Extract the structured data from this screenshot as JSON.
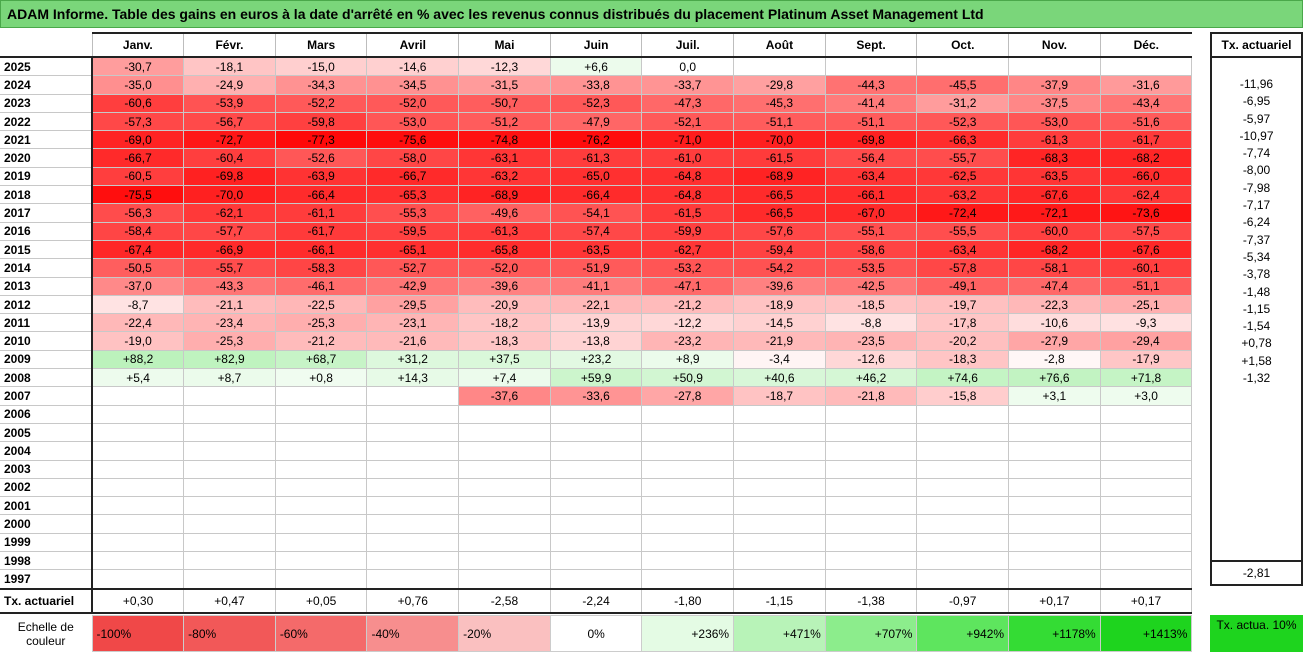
{
  "title": "ADAM Informe. Table des gains en euros à la date d'arrêté en % avec les revenus connus distribués du placement Platinum Asset Management Ltd",
  "chart_data": {
    "type": "heatmap",
    "columns": [
      "Janv.",
      "Févr.",
      "Mars",
      "Avril",
      "Mai",
      "Juin",
      "Juil.",
      "Août",
      "Sept.",
      "Oct.",
      "Nov.",
      "Déc."
    ],
    "side_header": "Tx. actuariel",
    "rows": [
      {
        "year": "2025",
        "values": [
          "-30,7",
          "-18,1",
          "-15,0",
          "-14,6",
          "-12,3",
          "+6,6",
          "0,0",
          "",
          "",
          "",
          "",
          ""
        ],
        "tx": ""
      },
      {
        "year": "2024",
        "values": [
          "-35,0",
          "-24,9",
          "-34,3",
          "-34,5",
          "-31,5",
          "-33,8",
          "-33,7",
          "-29,8",
          "-44,3",
          "-45,5",
          "-37,9",
          "-31,6"
        ],
        "tx": "-11,96"
      },
      {
        "year": "2023",
        "values": [
          "-60,6",
          "-53,9",
          "-52,2",
          "-52,0",
          "-50,7",
          "-52,3",
          "-47,3",
          "-45,3",
          "-41,4",
          "-31,2",
          "-37,5",
          "-43,4"
        ],
        "tx": "-6,95"
      },
      {
        "year": "2022",
        "values": [
          "-57,3",
          "-56,7",
          "-59,8",
          "-53,0",
          "-51,2",
          "-47,9",
          "-52,1",
          "-51,1",
          "-51,1",
          "-52,3",
          "-53,0",
          "-51,6"
        ],
        "tx": "-5,97"
      },
      {
        "year": "2021",
        "values": [
          "-69,0",
          "-72,7",
          "-77,3",
          "-75,6",
          "-74,8",
          "-76,2",
          "-71,0",
          "-70,0",
          "-69,8",
          "-66,3",
          "-61,3",
          "-61,7"
        ],
        "tx": "-10,97"
      },
      {
        "year": "2020",
        "values": [
          "-66,7",
          "-60,4",
          "-52,6",
          "-58,0",
          "-63,1",
          "-61,3",
          "-61,0",
          "-61,5",
          "-56,4",
          "-55,7",
          "-68,3",
          "-68,2"
        ],
        "tx": "-7,74"
      },
      {
        "year": "2019",
        "values": [
          "-60,5",
          "-69,8",
          "-63,9",
          "-66,7",
          "-63,2",
          "-65,0",
          "-64,8",
          "-68,9",
          "-63,4",
          "-62,5",
          "-63,5",
          "-66,0"
        ],
        "tx": "-8,00"
      },
      {
        "year": "2018",
        "values": [
          "-75,5",
          "-70,0",
          "-66,4",
          "-65,3",
          "-68,9",
          "-66,4",
          "-64,8",
          "-66,5",
          "-66,1",
          "-63,2",
          "-67,6",
          "-62,4"
        ],
        "tx": "-7,98"
      },
      {
        "year": "2017",
        "values": [
          "-56,3",
          "-62,1",
          "-61,1",
          "-55,3",
          "-49,6",
          "-54,1",
          "-61,5",
          "-66,5",
          "-67,0",
          "-72,4",
          "-72,1",
          "-73,6"
        ],
        "tx": "-7,17"
      },
      {
        "year": "2016",
        "values": [
          "-58,4",
          "-57,7",
          "-61,7",
          "-59,5",
          "-61,3",
          "-57,4",
          "-59,9",
          "-57,6",
          "-55,1",
          "-55,5",
          "-60,0",
          "-57,5"
        ],
        "tx": "-6,24"
      },
      {
        "year": "2015",
        "values": [
          "-67,4",
          "-66,9",
          "-66,1",
          "-65,1",
          "-65,8",
          "-63,5",
          "-62,7",
          "-59,4",
          "-58,6",
          "-63,4",
          "-68,2",
          "-67,6"
        ],
        "tx": "-7,37"
      },
      {
        "year": "2014",
        "values": [
          "-50,5",
          "-55,7",
          "-58,3",
          "-52,7",
          "-52,0",
          "-51,9",
          "-53,2",
          "-54,2",
          "-53,5",
          "-57,8",
          "-58,1",
          "-60,1"
        ],
        "tx": "-5,34"
      },
      {
        "year": "2013",
        "values": [
          "-37,0",
          "-43,3",
          "-46,1",
          "-42,9",
          "-39,6",
          "-41,1",
          "-47,1",
          "-39,6",
          "-42,5",
          "-49,1",
          "-47,4",
          "-51,1"
        ],
        "tx": "-3,78"
      },
      {
        "year": "2012",
        "values": [
          "-8,7",
          "-21,1",
          "-22,5",
          "-29,5",
          "-20,9",
          "-22,1",
          "-21,2",
          "-18,9",
          "-18,5",
          "-19,7",
          "-22,3",
          "-25,1"
        ],
        "tx": "-1,48"
      },
      {
        "year": "2011",
        "values": [
          "-22,4",
          "-23,4",
          "-25,3",
          "-23,1",
          "-18,2",
          "-13,9",
          "-12,2",
          "-14,5",
          "-8,8",
          "-17,8",
          "-10,6",
          "-9,3"
        ],
        "tx": "-1,15"
      },
      {
        "year": "2010",
        "values": [
          "-19,0",
          "-25,3",
          "-21,2",
          "-21,6",
          "-18,3",
          "-13,8",
          "-23,2",
          "-21,9",
          "-23,5",
          "-20,2",
          "-27,9",
          "-29,4"
        ],
        "tx": "-1,54"
      },
      {
        "year": "2009",
        "values": [
          "+88,2",
          "+82,9",
          "+68,7",
          "+31,2",
          "+37,5",
          "+23,2",
          "+8,9",
          "-3,4",
          "-12,6",
          "-18,3",
          "-2,8",
          "-17,9"
        ],
        "tx": "+0,78"
      },
      {
        "year": "2008",
        "values": [
          "+5,4",
          "+8,7",
          "+0,8",
          "+14,3",
          "+7,4",
          "+59,9",
          "+50,9",
          "+40,6",
          "+46,2",
          "+74,6",
          "+76,6",
          "+71,8"
        ],
        "tx": "+1,58"
      },
      {
        "year": "2007",
        "values": [
          "",
          "",
          "",
          "",
          "-37,6",
          "-33,6",
          "-27,8",
          "-18,7",
          "-21,8",
          "-15,8",
          "+3,1",
          "+3,0"
        ],
        "tx": "-1,32"
      },
      {
        "year": "2006",
        "values": [
          "",
          "",
          "",
          "",
          "",
          "",
          "",
          "",
          "",
          "",
          "",
          ""
        ],
        "tx": ""
      },
      {
        "year": "2005",
        "values": [
          "",
          "",
          "",
          "",
          "",
          "",
          "",
          "",
          "",
          "",
          "",
          ""
        ],
        "tx": ""
      },
      {
        "year": "2004",
        "values": [
          "",
          "",
          "",
          "",
          "",
          "",
          "",
          "",
          "",
          "",
          "",
          ""
        ],
        "tx": ""
      },
      {
        "year": "2003",
        "values": [
          "",
          "",
          "",
          "",
          "",
          "",
          "",
          "",
          "",
          "",
          "",
          ""
        ],
        "tx": ""
      },
      {
        "year": "2002",
        "values": [
          "",
          "",
          "",
          "",
          "",
          "",
          "",
          "",
          "",
          "",
          "",
          ""
        ],
        "tx": ""
      },
      {
        "year": "2001",
        "values": [
          "",
          "",
          "",
          "",
          "",
          "",
          "",
          "",
          "",
          "",
          "",
          ""
        ],
        "tx": ""
      },
      {
        "year": "2000",
        "values": [
          "",
          "",
          "",
          "",
          "",
          "",
          "",
          "",
          "",
          "",
          "",
          ""
        ],
        "tx": ""
      },
      {
        "year": "1999",
        "values": [
          "",
          "",
          "",
          "",
          "",
          "",
          "",
          "",
          "",
          "",
          "",
          ""
        ],
        "tx": ""
      },
      {
        "year": "1998",
        "values": [
          "",
          "",
          "",
          "",
          "",
          "",
          "",
          "",
          "",
          "",
          "",
          ""
        ],
        "tx": ""
      },
      {
        "year": "1997",
        "values": [
          "",
          "",
          "",
          "",
          "",
          "",
          "",
          "",
          "",
          "",
          "",
          ""
        ],
        "tx": ""
      }
    ],
    "footer": {
      "label": "Tx. actuariel",
      "values": [
        "+0,30",
        "+0,47",
        "+0,05",
        "+0,76",
        "-2,58",
        "-2,24",
        "-1,80",
        "-1,15",
        "-1,38",
        "-0,97",
        "+0,17",
        "+0,17"
      ],
      "total": "-2,81"
    },
    "scale": {
      "label": "Echelle de couleur",
      "steps": [
        {
          "text": "-100%",
          "color": "#f04848",
          "align": "neg"
        },
        {
          "text": "-80%",
          "color": "#f25858",
          "align": "neg"
        },
        {
          "text": "-60%",
          "color": "#f46a6a",
          "align": "neg"
        },
        {
          "text": "-40%",
          "color": "#f78e8e",
          "align": "neg"
        },
        {
          "text": "-20%",
          "color": "#fac0c0",
          "align": "neg"
        },
        {
          "text": "0%",
          "color": "#ffffff",
          "align": "mid"
        },
        {
          "text": "+236%",
          "color": "#e4fbe4",
          "align": "pos"
        },
        {
          "text": "+471%",
          "color": "#b8f3b8",
          "align": "pos"
        },
        {
          "text": "+707%",
          "color": "#8ced8c",
          "align": "pos"
        },
        {
          "text": "+942%",
          "color": "#5ee55e",
          "align": "pos"
        },
        {
          "text": "+1178%",
          "color": "#34dc34",
          "align": "pos"
        },
        {
          "text": "+1413%",
          "color": "#1ed41e",
          "align": "pos"
        }
      ],
      "side_text": "Tx. actua. 10%"
    }
  }
}
